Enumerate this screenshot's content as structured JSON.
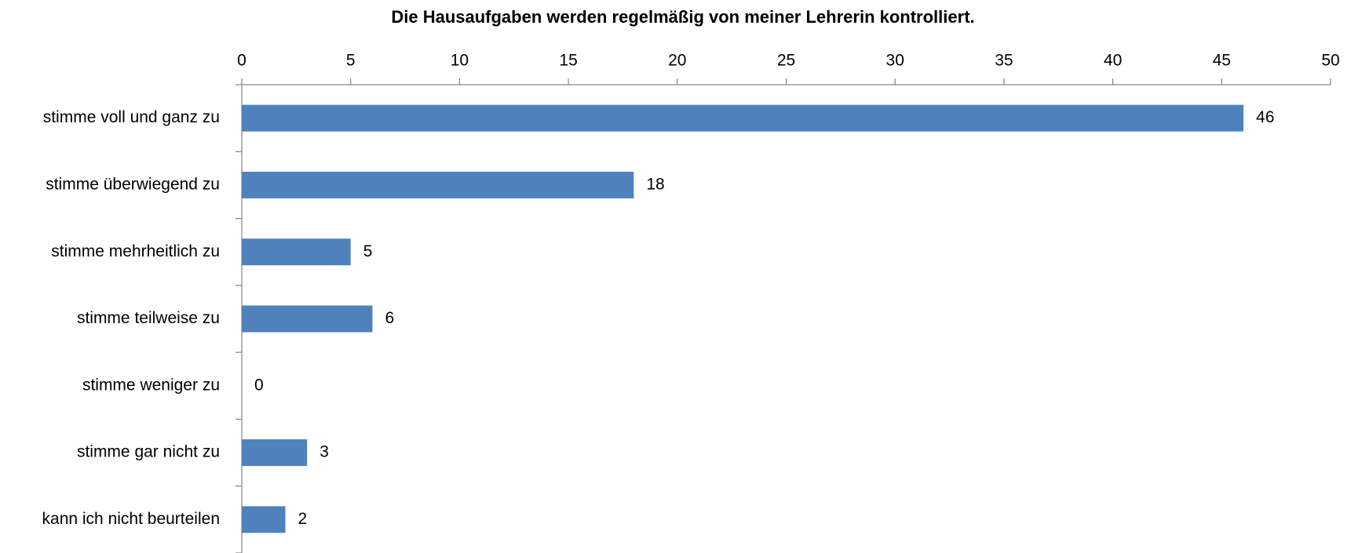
{
  "chart_data": {
    "type": "barh",
    "title": "Die Hausaufgaben werden regelmäßig von meiner Lehrerin kontrolliert.",
    "categories": [
      "stimme voll und ganz zu",
      "stimme überwiegend zu",
      "stimme mehrheitlich zu",
      "stimme teilweise zu",
      "stimme weniger zu",
      "stimme gar nicht zu",
      "kann ich nicht beurteilen"
    ],
    "values": [
      46,
      18,
      5,
      6,
      0,
      3,
      2
    ],
    "color": "#4f81bd",
    "xlim": [
      0,
      50
    ],
    "xticks": [
      0,
      5,
      10,
      15,
      20,
      25,
      30,
      35,
      40,
      45,
      50
    ],
    "grid": false
  }
}
